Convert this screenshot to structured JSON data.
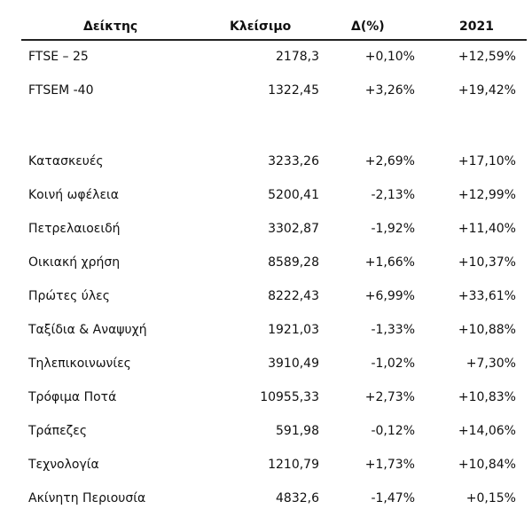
{
  "headers": {
    "name": "Δείκτης",
    "close": "Κλείσιμο",
    "delta": "Δ(%)",
    "ytd": "2021"
  },
  "main_indices": [
    {
      "name": "FTSE – 25",
      "close": "2178,3",
      "delta": "+0,10%",
      "ytd": "+12,59%"
    },
    {
      "name": "FTSEM -40",
      "close": "1322,45",
      "delta": "+3,26%",
      "ytd": "+19,42%"
    }
  ],
  "sectors": [
    {
      "name": "Κατασκευές",
      "close": "3233,26",
      "delta": "+2,69%",
      "ytd": "+17,10%"
    },
    {
      "name": "Κοινή ωφέλεια",
      "close": "5200,41",
      "delta": "-2,13%",
      "ytd": "+12,99%"
    },
    {
      "name": "Πετρελαιοειδή",
      "close": "3302,87",
      "delta": "-1,92%",
      "ytd": "+11,40%"
    },
    {
      "name": "Οικιακή χρήση",
      "close": "8589,28",
      "delta": "+1,66%",
      "ytd": "+10,37%"
    },
    {
      "name": "Πρώτες ύλες",
      "close": "8222,43",
      "delta": "+6,99%",
      "ytd": "+33,61%"
    },
    {
      "name": "Ταξίδια & Αναψυχή",
      "close": "1921,03",
      "delta": "-1,33%",
      "ytd": "+10,88%"
    },
    {
      "name": "Τηλεπικοινωνίες",
      "close": "3910,49",
      "delta": "-1,02%",
      "ytd": "+7,30%"
    },
    {
      "name": "Τρόφιμα Ποτά",
      "close": "10955,33",
      "delta": "+2,73%",
      "ytd": "+10,83%"
    },
    {
      "name": "Τράπεζες",
      "close": "591,98",
      "delta": "-0,12%",
      "ytd": "+14,06%"
    },
    {
      "name": "Τεχνολογία",
      "close": "1210,79",
      "delta": "+1,73%",
      "ytd": "+10,84%"
    },
    {
      "name": "Ακίνητη Περιουσία",
      "close": "4832,6",
      "delta": "-1,47%",
      "ytd": "+0,15%"
    }
  ]
}
